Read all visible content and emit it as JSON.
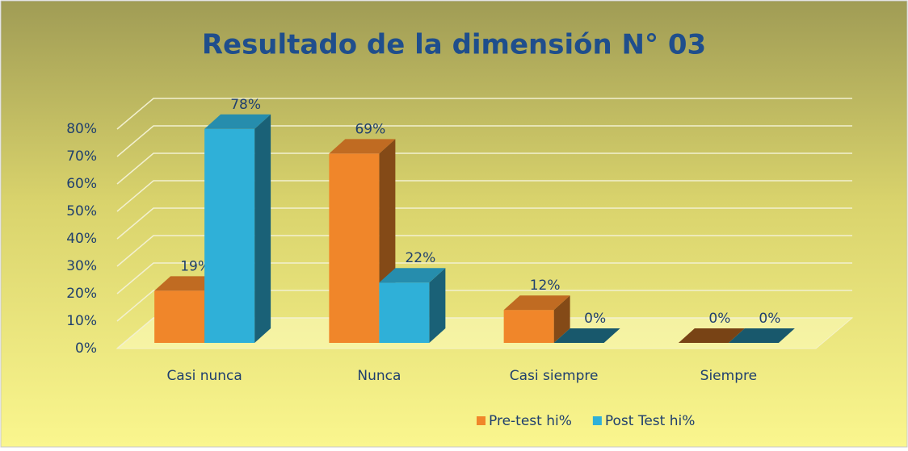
{
  "chart_data": {
    "type": "bar3d",
    "title": "Resultado de la dimensión N° 03",
    "categories": [
      "Casi nunca",
      "Nunca",
      "Casi siempre",
      "Siempre"
    ],
    "series": [
      {
        "name": "Pre-test hi%",
        "color": "#f0862a",
        "values": [
          19,
          69,
          12,
          0
        ],
        "value_labels": [
          "19%",
          "69%",
          "12%",
          "0%"
        ]
      },
      {
        "name": "Post Test hi%",
        "color": "#2fb0d8",
        "values": [
          78,
          22,
          0,
          0
        ],
        "value_labels": [
          "78%",
          "22%",
          "0%",
          "0%"
        ]
      }
    ],
    "ylim": [
      0,
      80
    ],
    "yticks": [
      {
        "value": 0,
        "label": "0%"
      },
      {
        "value": 10,
        "label": "10%"
      },
      {
        "value": 20,
        "label": "20%"
      },
      {
        "value": 30,
        "label": "30%"
      },
      {
        "value": 40,
        "label": "40%"
      },
      {
        "value": 50,
        "label": "50%"
      },
      {
        "value": 60,
        "label": "60%"
      },
      {
        "value": 70,
        "label": "70%"
      },
      {
        "value": 80,
        "label": "80%"
      }
    ],
    "grid": true,
    "legend": "bottom"
  }
}
